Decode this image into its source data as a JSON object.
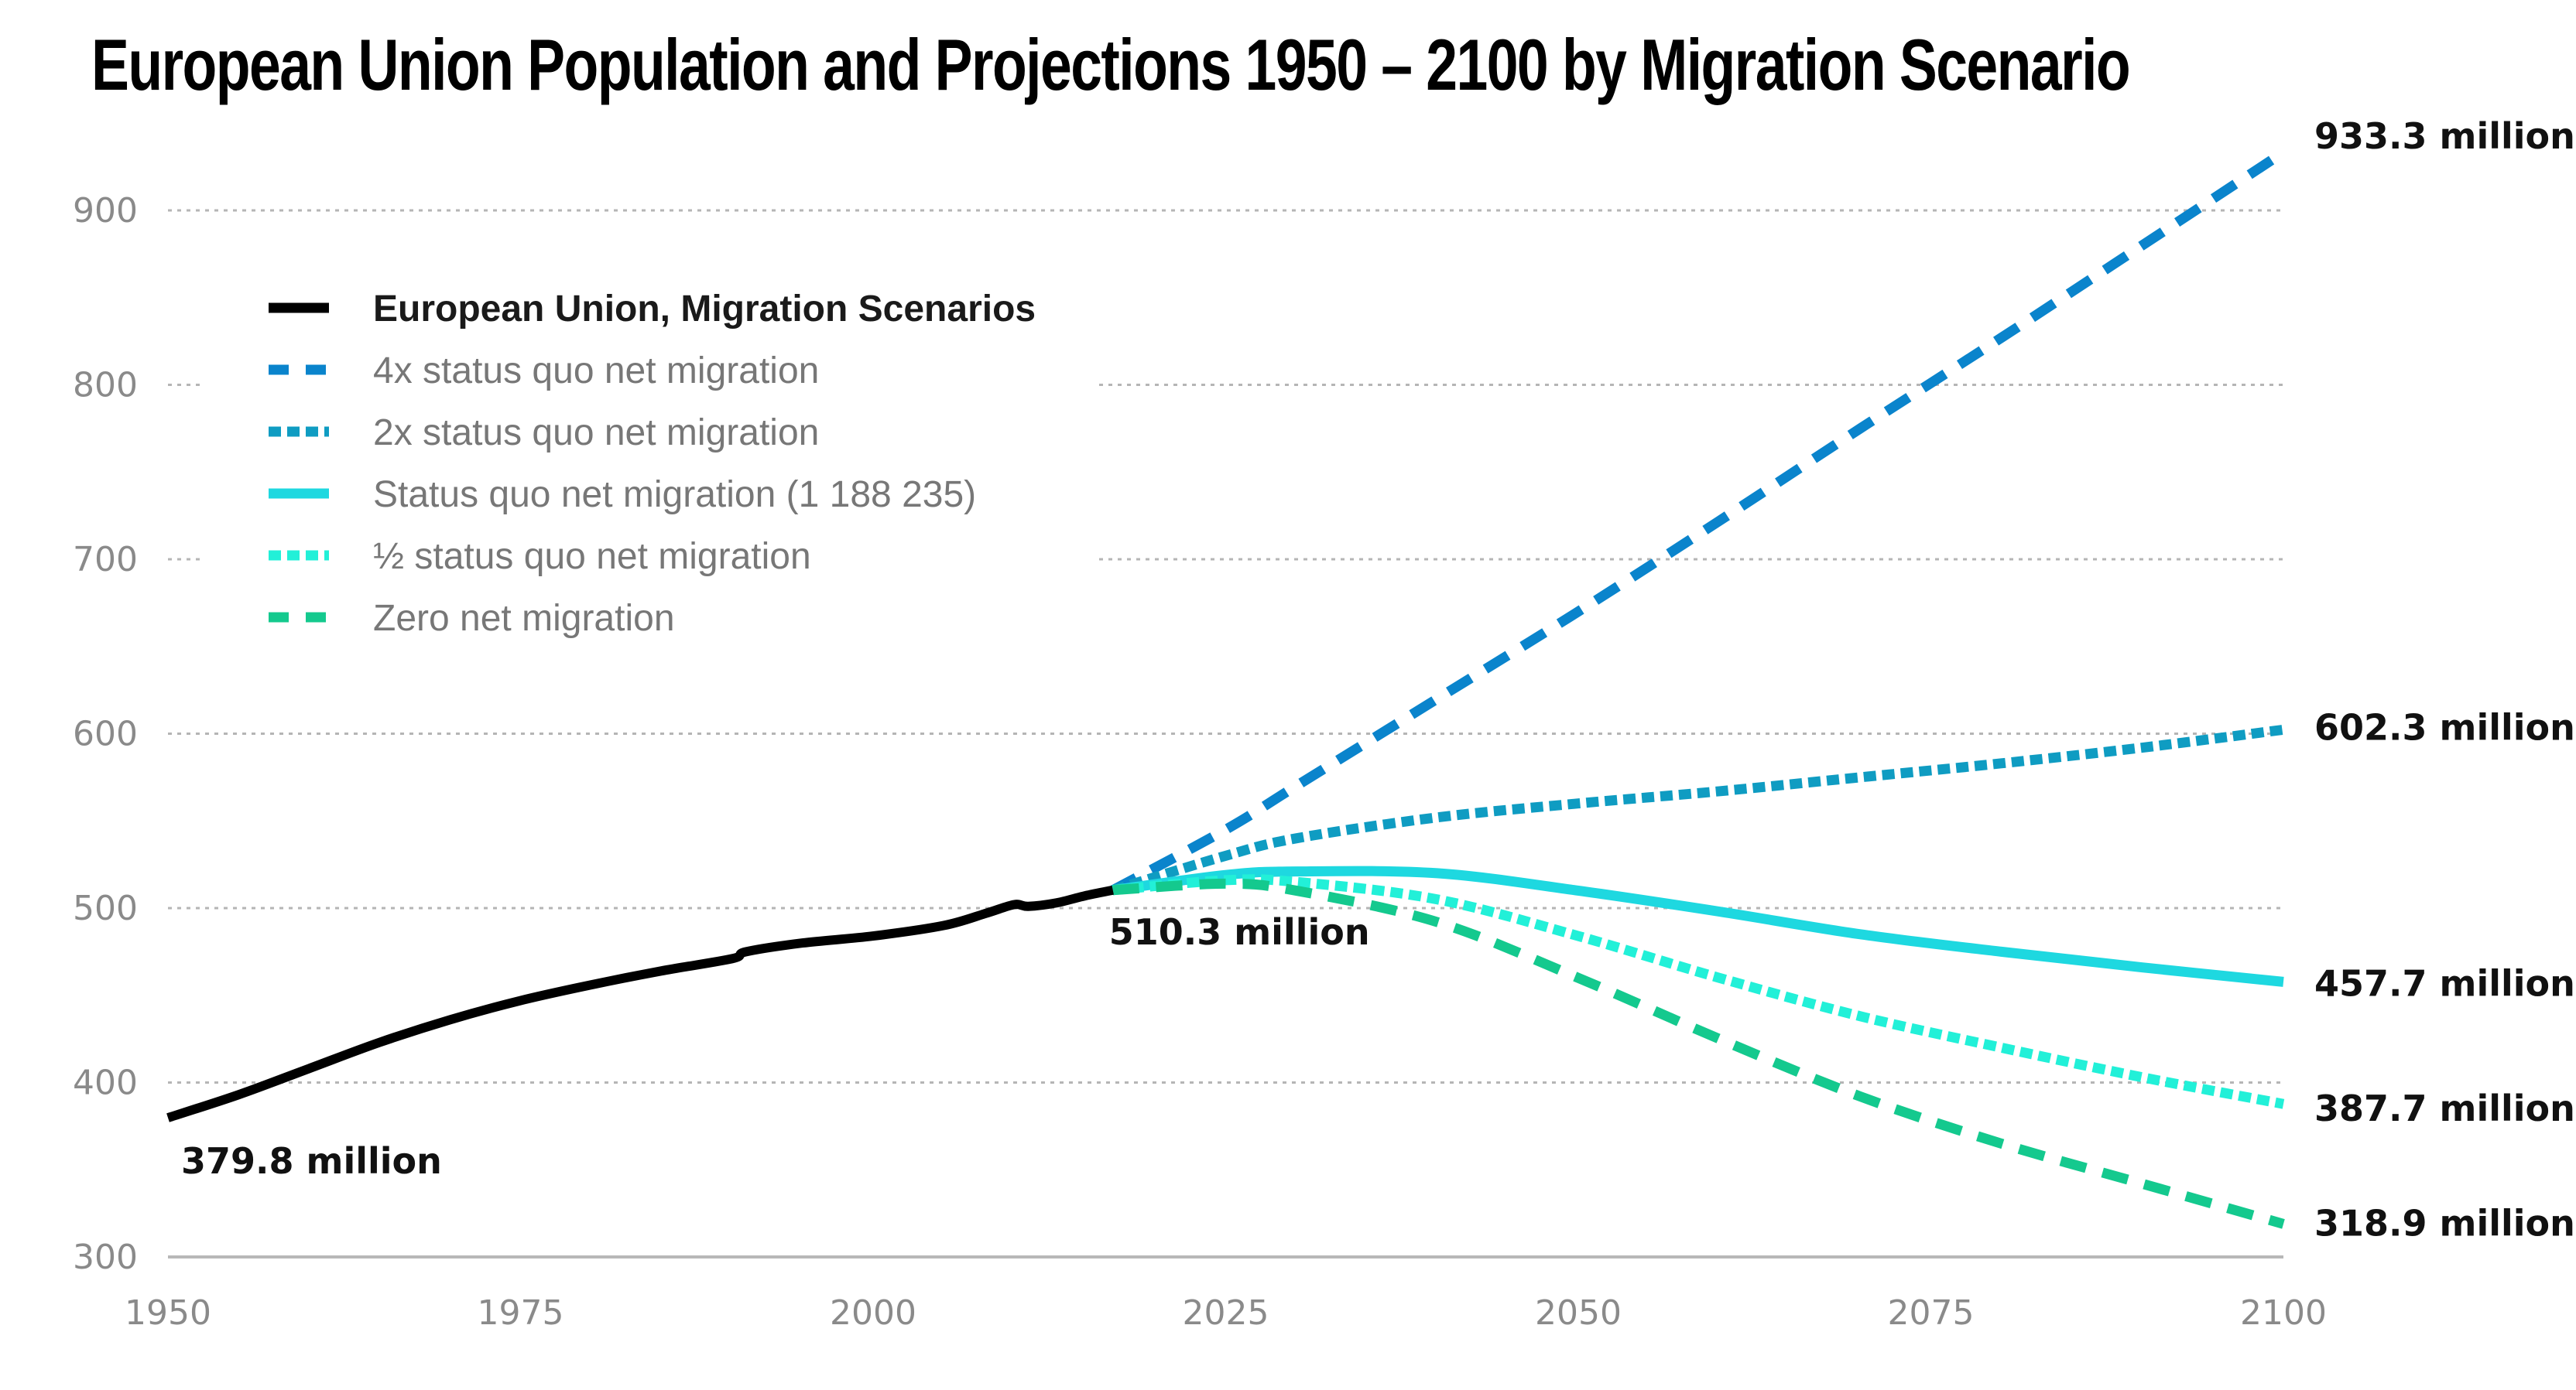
{
  "chart_data": {
    "type": "line",
    "title": "European Union Population and Projections 1950 – 2100 by Migration Scenario",
    "xlabel": "",
    "ylabel": "",
    "xlim": [
      1950,
      2100
    ],
    "ylim": [
      300,
      950
    ],
    "x_ticks": [
      "1950",
      "1975",
      "2000",
      "2025",
      "2050",
      "2075",
      "2100"
    ],
    "y_ticks": [
      "300",
      "400",
      "500",
      "600",
      "700",
      "800",
      "900"
    ],
    "grid": "horizontal dotted",
    "legend_position": "top-left",
    "series": [
      {
        "name": "European Union, Migration Scenarios",
        "color": "#000000",
        "style": "solid",
        "x": [
          1950,
          1955,
          1960,
          1965,
          1970,
          1975,
          1980,
          1985,
          1990,
          1991,
          1995,
          2000,
          2005,
          2008,
          2010,
          2011,
          2013,
          2015,
          2017
        ],
        "values": [
          379.8,
          393,
          408,
          423,
          436,
          447,
          456,
          464,
          471,
          475,
          480,
          484,
          490,
          497,
          502,
          501,
          503,
          507,
          510.3
        ]
      },
      {
        "name": "4x status quo net migration",
        "color": "#0a84cc",
        "style": "dashed",
        "x": [
          2017,
          2025,
          2030,
          2040,
          2050,
          2060,
          2070,
          2080,
          2090,
          2100
        ],
        "values": [
          510.3,
          545,
          570,
          620,
          670,
          722,
          775,
          827,
          880,
          933.3
        ]
      },
      {
        "name": "2x status quo net migration",
        "color": "#0f9cc2",
        "style": "dotted",
        "x": [
          2017,
          2025,
          2030,
          2040,
          2050,
          2060,
          2070,
          2080,
          2090,
          2100
        ],
        "values": [
          510.3,
          530,
          540,
          552,
          560,
          567,
          575,
          583,
          592,
          602.3
        ]
      },
      {
        "name": "Status quo net migration (1 188 235)",
        "color": "#1ed8e0",
        "style": "solid",
        "x": [
          2017,
          2025,
          2030,
          2040,
          2050,
          2060,
          2070,
          2080,
          2090,
          2100
        ],
        "values": [
          510.3,
          519,
          521,
          520,
          510,
          498,
          485,
          475,
          466,
          457.7
        ]
      },
      {
        "name": "½ status quo net migration",
        "color": "#22f0d8",
        "style": "dotted",
        "x": [
          2017,
          2025,
          2030,
          2040,
          2050,
          2060,
          2070,
          2080,
          2090,
          2100
        ],
        "values": [
          510.3,
          516,
          515,
          505,
          484,
          460,
          438,
          420,
          403,
          387.7
        ]
      },
      {
        "name": "Zero net migration",
        "color": "#14c98e",
        "style": "dashed",
        "x": [
          2017,
          2025,
          2030,
          2040,
          2050,
          2060,
          2070,
          2080,
          2090,
          2100
        ],
        "values": [
          510.3,
          514,
          510,
          492,
          460,
          425,
          392,
          365,
          342,
          318.9
        ]
      }
    ],
    "annotations": [
      {
        "text": "379.8 million",
        "x": 1950,
        "y": 379.8
      },
      {
        "text": "510.3 million",
        "x": 2017,
        "y": 510.3
      },
      {
        "text": "933.3 million",
        "x": 2100,
        "y": 933.3
      },
      {
        "text": "602.3 million",
        "x": 2100,
        "y": 602.3
      },
      {
        "text": "457.7 million",
        "x": 2100,
        "y": 457.7
      },
      {
        "text": "387.7 million",
        "x": 2100,
        "y": 387.7
      },
      {
        "text": "318.9 million",
        "x": 2100,
        "y": 318.9
      }
    ]
  }
}
